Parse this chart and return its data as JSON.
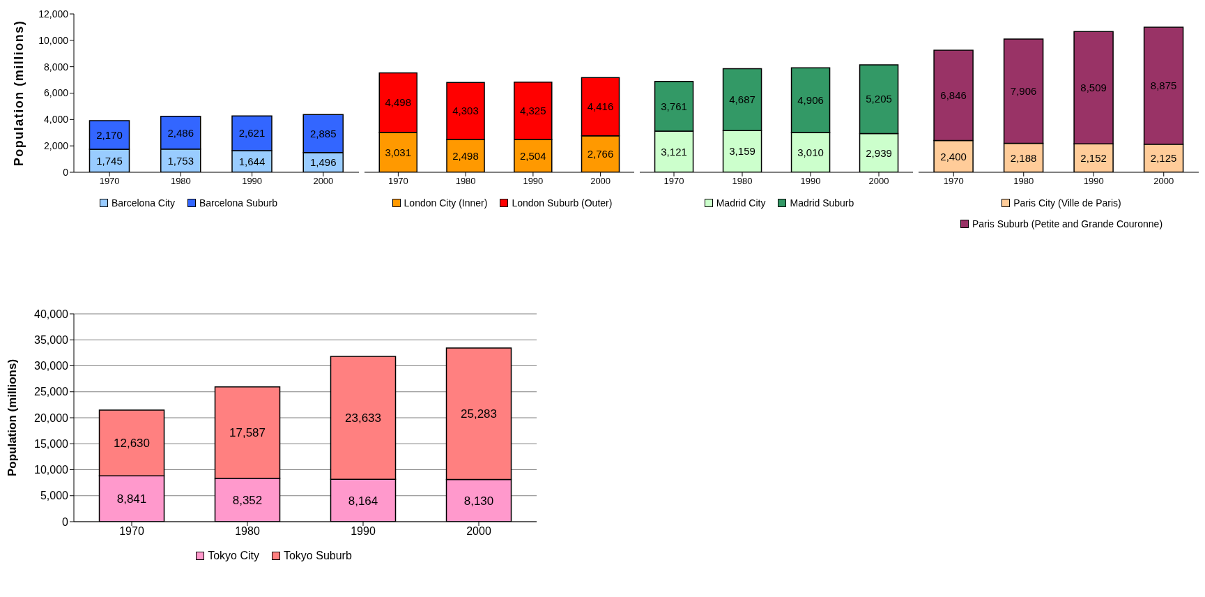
{
  "chart_data": [
    {
      "type": "bar",
      "stacked": true,
      "ylabel": "Population (millions)",
      "categories": [
        "1970",
        "1980",
        "1990",
        "2000"
      ],
      "ylim": [
        0,
        12000
      ],
      "yticks": [
        {
          "value": 0,
          "label": "0"
        },
        {
          "value": 2000,
          "label": "2,000"
        },
        {
          "value": 4000,
          "label": "4,000"
        },
        {
          "value": 6000,
          "label": "6,000"
        },
        {
          "value": 8000,
          "label": "8,000"
        },
        {
          "value": 10000,
          "label": "10,000"
        },
        {
          "value": 12000,
          "label": "12,000"
        }
      ],
      "legend": "bottom",
      "series": [
        {
          "name": "Barcelona City",
          "color": "#99ccff",
          "values": [
            1745,
            1753,
            1644,
            1496
          ],
          "value_labels": [
            "1,745",
            "1,753",
            "1,644",
            "1,496"
          ]
        },
        {
          "name": "Barcelona Suburb",
          "color": "#3366ff",
          "values": [
            2170,
            2486,
            2621,
            2885
          ],
          "value_labels": [
            "2,170",
            "2,486",
            "2,621",
            "2,885"
          ]
        }
      ]
    },
    {
      "type": "bar",
      "stacked": true,
      "categories": [
        "1970",
        "1980",
        "1990",
        "2000"
      ],
      "ylim": [
        0,
        12000
      ],
      "tick_labels": "x",
      "legend": "bottom",
      "series": [
        {
          "name": "London City (Inner)",
          "color": "#ff9900",
          "values": [
            3031,
            2498,
            2504,
            2766
          ],
          "value_labels": [
            "3,031",
            "2,498",
            "2,504",
            "2,766"
          ]
        },
        {
          "name": "London Suburb (Outer)",
          "color": "#ff0000",
          "values": [
            4498,
            4303,
            4325,
            4416
          ],
          "value_labels": [
            "4,498",
            "4,303",
            "4,325",
            "4,416"
          ]
        }
      ]
    },
    {
      "type": "bar",
      "stacked": true,
      "categories": [
        "1970",
        "1980",
        "1990",
        "2000"
      ],
      "ylim": [
        0,
        12000
      ],
      "tick_labels": "x",
      "legend": "bottom",
      "series": [
        {
          "name": "Madrid City",
          "color": "#ccffcc",
          "values": [
            3121,
            3159,
            3010,
            2939
          ],
          "value_labels": [
            "3,121",
            "3,159",
            "3,010",
            "2,939"
          ]
        },
        {
          "name": "Madrid Suburb",
          "color": "#339966",
          "values": [
            3761,
            4687,
            4906,
            5205
          ],
          "value_labels": [
            "3,761",
            "4,687",
            "4,906",
            "5,205"
          ]
        }
      ]
    },
    {
      "type": "bar",
      "stacked": true,
      "categories": [
        "1970",
        "1980",
        "1990",
        "2000"
      ],
      "ylim": [
        0,
        12000
      ],
      "tick_labels": "x",
      "legend": "bottom",
      "series": [
        {
          "name": "Paris City (Ville de Paris)",
          "color": "#ffcc99",
          "values": [
            2400,
            2188,
            2152,
            2125
          ],
          "value_labels": [
            "2,400",
            "2,188",
            "2,152",
            "2,125"
          ]
        },
        {
          "name": "Paris Suburb (Petite and Grande Couronne)",
          "color": "#993366",
          "values": [
            6846,
            7906,
            8509,
            8875
          ],
          "value_labels": [
            "6,846",
            "7,906",
            "8,509",
            "8,875"
          ]
        }
      ]
    },
    {
      "type": "bar",
      "stacked": true,
      "ylabel": "Population (millions)",
      "categories": [
        "1970",
        "1980",
        "1990",
        "2000"
      ],
      "ylim": [
        0,
        40000
      ],
      "yticks": [
        {
          "value": 0,
          "label": "0"
        },
        {
          "value": 5000,
          "label": "5,000"
        },
        {
          "value": 10000,
          "label": "10,000"
        },
        {
          "value": 15000,
          "label": "15,000"
        },
        {
          "value": 20000,
          "label": "20,000"
        },
        {
          "value": 25000,
          "label": "25,000"
        },
        {
          "value": 30000,
          "label": "30,000"
        },
        {
          "value": 35000,
          "label": "35,000"
        },
        {
          "value": 40000,
          "label": "40,000"
        }
      ],
      "grid": "y",
      "legend": "bottom",
      "series": [
        {
          "name": "Tokyo City",
          "color": "#ff99cc",
          "values": [
            8841,
            8352,
            8164,
            8130
          ],
          "value_labels": [
            "8,841",
            "8,352",
            "8,164",
            "8,130"
          ]
        },
        {
          "name": "Tokyo Suburb",
          "color": "#ff8080",
          "values": [
            12630,
            17587,
            23633,
            25283
          ],
          "value_labels": [
            "12,630",
            "17,587",
            "23,633",
            "25,283"
          ]
        }
      ]
    }
  ]
}
